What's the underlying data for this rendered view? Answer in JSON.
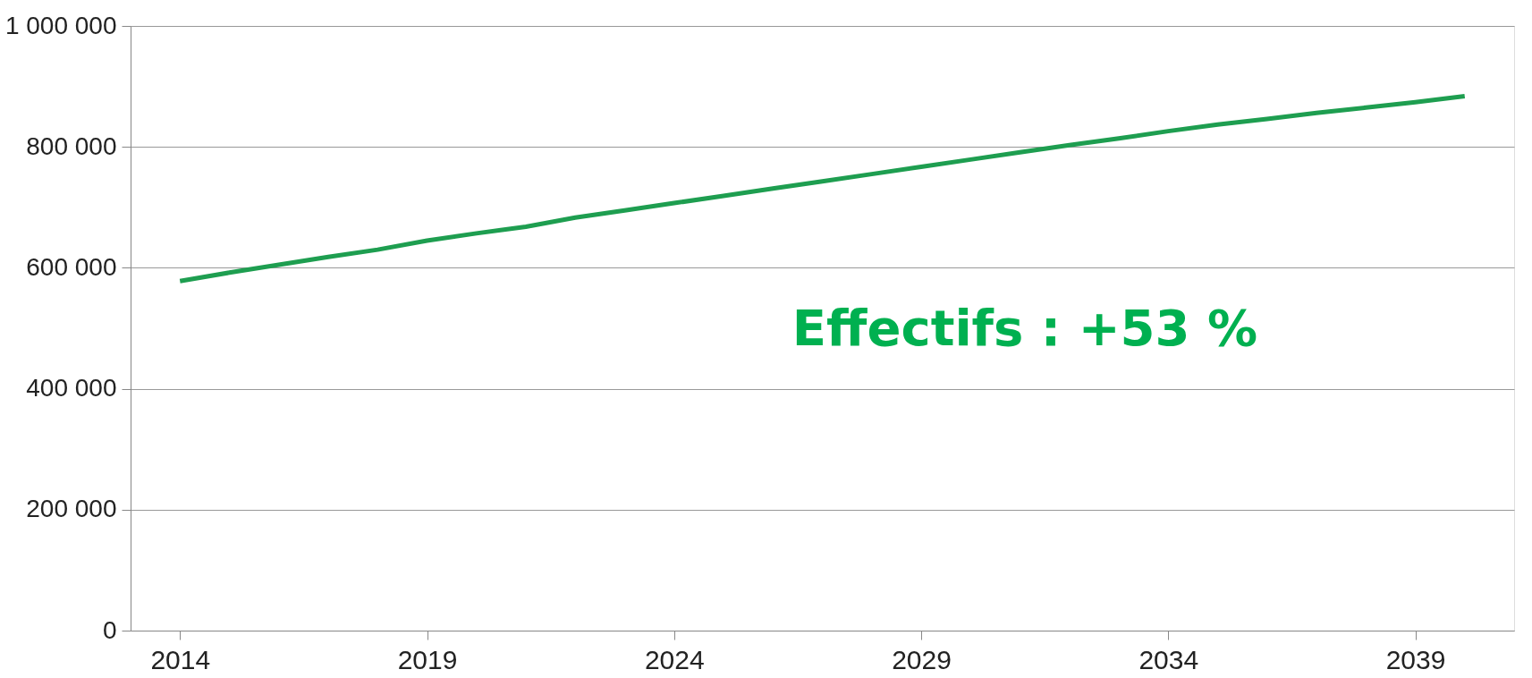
{
  "chart_data": {
    "type": "line",
    "x": [
      2014,
      2015,
      2016,
      2017,
      2018,
      2019,
      2020,
      2021,
      2022,
      2023,
      2024,
      2025,
      2026,
      2027,
      2028,
      2029,
      2030,
      2031,
      2032,
      2033,
      2034,
      2035,
      2036,
      2037,
      2038,
      2039,
      2040
    ],
    "series": [
      {
        "color": "#1e9e50",
        "values": [
          578000,
          592000,
          605000,
          618000,
          630000,
          645000,
          657000,
          668000,
          683000,
          695000,
          707000,
          719000,
          731000,
          743000,
          755000,
          767000,
          779000,
          791000,
          803000,
          814000,
          826000,
          837000,
          846000,
          856000,
          865000,
          874000,
          884000
        ]
      }
    ],
    "xlim": [
      2013,
      2041
    ],
    "xticks": [
      2014,
      2019,
      2024,
      2029,
      2034,
      2039
    ],
    "ylim": [
      0,
      1000000
    ],
    "yticks": [
      {
        "value": 0,
        "label": "0"
      },
      {
        "value": 200000,
        "label": "200 000"
      },
      {
        "value": 400000,
        "label": "400 000"
      },
      {
        "value": 600000,
        "label": "600 000"
      },
      {
        "value": 800000,
        "label": "800 000"
      },
      {
        "value": 1000000,
        "label": "1 000 000"
      }
    ],
    "grid": "y",
    "marker": "none",
    "line_style": "solid",
    "annotations": [
      "Effectifs : +53 %"
    ]
  }
}
